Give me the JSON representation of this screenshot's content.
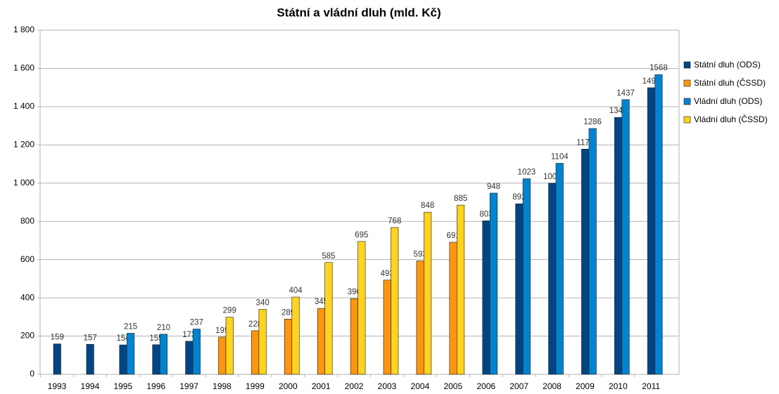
{
  "chart_data": {
    "type": "bar",
    "title": "Státní a vládní dluh (mld. Kč)",
    "categories": [
      "1993",
      "1994",
      "1995",
      "1996",
      "1997",
      "1998",
      "1999",
      "2000",
      "2001",
      "2002",
      "2003",
      "2004",
      "2005",
      "2006",
      "2007",
      "2008",
      "2009",
      "2010",
      "2011"
    ],
    "series": [
      {
        "name": "Státní dluh (ODS)",
        "color": "#004586",
        "values": [
          159,
          157,
          154,
          155,
          173,
          null,
          null,
          null,
          null,
          null,
          null,
          null,
          null,
          803,
          892,
          1000,
          1178,
          1344,
          1499
        ]
      },
      {
        "name": "Státní dluh (ČSSD)",
        "color": "#ff950e",
        "values": [
          null,
          null,
          null,
          null,
          null,
          195,
          228,
          289,
          345,
          396,
          493,
          593,
          691,
          null,
          null,
          null,
          null,
          null,
          null
        ]
      },
      {
        "name": "Vládní dluh (ODS)",
        "color": "#0084d1",
        "values": [
          null,
          null,
          215,
          210,
          237,
          null,
          null,
          null,
          null,
          null,
          null,
          null,
          null,
          948,
          1023,
          1104,
          1286,
          1437,
          1568
        ]
      },
      {
        "name": "Vládní dluh (ČSSD)",
        "color": "#ffd320",
        "values": [
          null,
          null,
          null,
          null,
          null,
          299,
          340,
          404,
          585,
          695,
          768,
          848,
          885,
          null,
          null,
          null,
          null,
          null,
          null
        ]
      }
    ],
    "ylim": [
      0,
      1800
    ],
    "yticks": [
      0,
      200,
      400,
      600,
      800,
      {
        "value": 1000,
        "label": "1 000"
      },
      {
        "value": 1200,
        "label": "1 200"
      },
      {
        "value": 1400,
        "label": "1 400"
      },
      {
        "value": 1600,
        "label": "1 600"
      },
      {
        "value": 1800,
        "label": "1 800"
      }
    ],
    "grid": true,
    "legend": "right"
  }
}
